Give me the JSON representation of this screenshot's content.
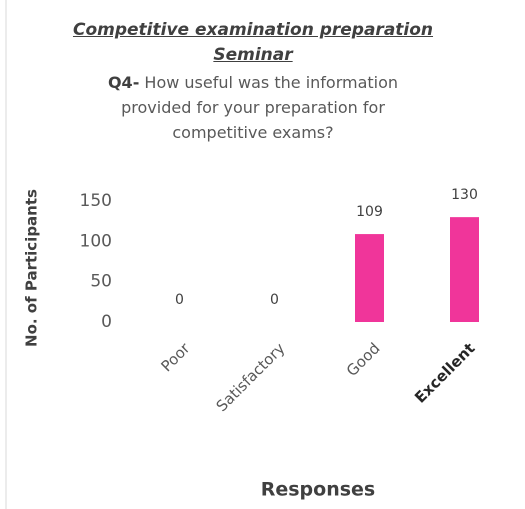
{
  "chart_data": {
    "type": "bar",
    "title": "Competitive examination preparation Seminar",
    "question_number": "Q4-",
    "subtitle": "How useful was the information provided for your preparation for competitive exams?",
    "xlabel": "Responses",
    "ylabel": "No. of Participants",
    "categories": [
      "Poor",
      "Satisfactory",
      "Good",
      "Excellent"
    ],
    "values": [
      0,
      0,
      109,
      130
    ],
    "color": "#f0359a",
    "ylim": [
      0,
      150
    ],
    "yticks": [
      0,
      50,
      100,
      150
    ],
    "grid": false
  }
}
